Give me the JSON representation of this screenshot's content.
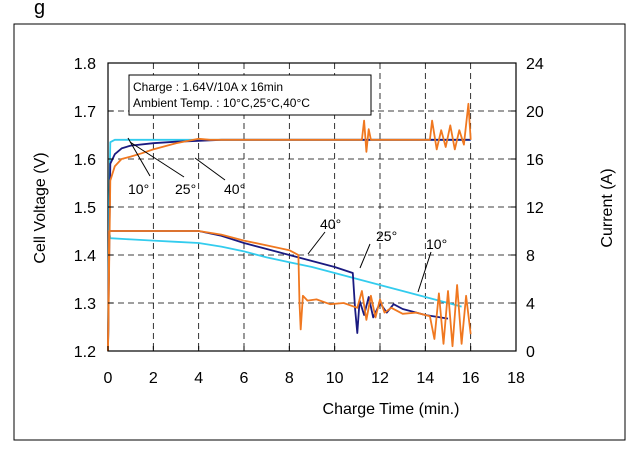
{
  "header_fragment": "g",
  "chart_data": {
    "type": "line",
    "title": "",
    "xlabel": "Charge Time (min.)",
    "ylabel_left": "Cell Voltage (V)",
    "ylabel_right": "Current (A)",
    "xlim": [
      0,
      18
    ],
    "ylim_left": [
      1.2,
      1.8
    ],
    "ylim_right": [
      0,
      24
    ],
    "x_ticks": [
      0,
      2,
      4,
      6,
      8,
      10,
      12,
      14,
      16,
      18
    ],
    "y_left_ticks": [
      1.2,
      1.3,
      1.4,
      1.5,
      1.6,
      1.7,
      1.8
    ],
    "y_right_ticks": [
      0,
      4,
      8,
      12,
      16,
      20,
      24
    ],
    "x_tick_labels": [
      "0",
      "2",
      "4",
      "6",
      "8",
      "10",
      "12",
      "14",
      "16",
      "18"
    ],
    "y_left_tick_labels": [
      "1.2",
      "1.3",
      "1.4",
      "1.5",
      "1.6",
      "1.7",
      "1.8"
    ],
    "y_right_tick_labels": [
      "0",
      "4",
      "8",
      "12",
      "16",
      "20",
      "24"
    ],
    "grid": true,
    "legend_box": {
      "line1": "Charge : 1.64V/10A x 16min",
      "line2": "Ambient Temp. : 10°C,25°C,40°C"
    },
    "colors": {
      "t10": "#33CCEE",
      "t25": "#1A1A80",
      "t40": "#F07820"
    },
    "series": [
      {
        "name": "10°",
        "kind": "voltage",
        "axis": "left",
        "color": "#33CCEE",
        "x": [
          0,
          0.05,
          0.1,
          0.3,
          1,
          4,
          16
        ],
        "y": [
          1.2,
          1.5,
          1.635,
          1.64,
          1.64,
          1.64,
          1.64
        ]
      },
      {
        "name": "25°",
        "kind": "voltage",
        "axis": "left",
        "color": "#1A1A80",
        "x": [
          0,
          0.1,
          0.3,
          0.6,
          1,
          2,
          3,
          4,
          5,
          16
        ],
        "y": [
          1.2,
          1.59,
          1.61,
          1.622,
          1.628,
          1.633,
          1.636,
          1.638,
          1.64,
          1.64
        ]
      },
      {
        "name": "40°",
        "kind": "voltage",
        "axis": "left",
        "color": "#F07820",
        "x": [
          0,
          0.1,
          0.3,
          0.6,
          1,
          1.5,
          2,
          3,
          4,
          4.5,
          11.2,
          11.3,
          11.4,
          11.5,
          11.6,
          14.2,
          14.3,
          14.5,
          14.7,
          14.9,
          15.1,
          15.3,
          15.5,
          15.7,
          15.9,
          16
        ],
        "y": [
          1.2,
          1.555,
          1.585,
          1.6,
          1.605,
          1.612,
          1.62,
          1.633,
          1.642,
          1.64,
          1.64,
          1.68,
          1.615,
          1.662,
          1.64,
          1.64,
          1.68,
          1.62,
          1.66,
          1.625,
          1.67,
          1.62,
          1.66,
          1.63,
          1.715,
          1.64
        ]
      },
      {
        "name": "10°",
        "kind": "current",
        "axis": "right",
        "color": "#33CCEE",
        "x": [
          0,
          0.05,
          0.1,
          1,
          2,
          3,
          4,
          5,
          6,
          7,
          8,
          9,
          10,
          11,
          12,
          13,
          14,
          15,
          15.6
        ],
        "y": [
          0,
          10,
          9.4,
          9.3,
          9.2,
          9.1,
          9.0,
          8.7,
          8.3,
          7.8,
          7.4,
          7.0,
          6.5,
          6.0,
          5.5,
          5.0,
          4.5,
          4.0,
          3.7
        ]
      },
      {
        "name": "25°",
        "kind": "current",
        "axis": "right",
        "color": "#1A1A80",
        "x": [
          0,
          0.05,
          0.1,
          2,
          4,
          5,
          6,
          7,
          8,
          9,
          10,
          10.8,
          10.9,
          11.0,
          11.1,
          11.3,
          11.5,
          11.7,
          12.0,
          12.3,
          12.6,
          13,
          14,
          15
        ],
        "y": [
          0,
          10,
          10,
          10,
          10,
          9.6,
          9.0,
          8.5,
          8.0,
          7.5,
          7.0,
          6.5,
          3.5,
          1.5,
          4.2,
          3.0,
          4.5,
          2.8,
          4.0,
          3.2,
          3.9,
          3.5,
          3.0,
          2.7
        ]
      },
      {
        "name": "40°",
        "kind": "current",
        "axis": "right",
        "color": "#F07820",
        "x": [
          0,
          0.05,
          0.1,
          2,
          4,
          5,
          6,
          7,
          8,
          8.4,
          8.45,
          8.5,
          8.6,
          8.8,
          9.2,
          9.8,
          10.4,
          11,
          11.2,
          11.4,
          11.6,
          11.8,
          12,
          12.2,
          12.5,
          13,
          13.6,
          14.2,
          14.4,
          14.6,
          14.8,
          15,
          15.2,
          15.4,
          15.6,
          15.8,
          16
        ],
        "y": [
          0,
          10,
          10,
          10,
          10,
          9.7,
          9.2,
          8.8,
          8.4,
          8.0,
          4.0,
          1.8,
          4.6,
          4.2,
          4.3,
          3.9,
          4.0,
          3.6,
          5.0,
          2.6,
          4.6,
          2.8,
          4.3,
          3.2,
          3.6,
          3.1,
          3.2,
          2.9,
          1.0,
          4.8,
          0.6,
          5.0,
          0.4,
          5.5,
          0.6,
          4.6,
          1.4
        ]
      }
    ],
    "annotations": [
      {
        "text": "10°",
        "group": "voltage"
      },
      {
        "text": "25°",
        "group": "voltage"
      },
      {
        "text": "40°",
        "group": "voltage"
      },
      {
        "text": "40°",
        "group": "current"
      },
      {
        "text": "25°",
        "group": "current"
      },
      {
        "text": "10°",
        "group": "current"
      }
    ]
  }
}
